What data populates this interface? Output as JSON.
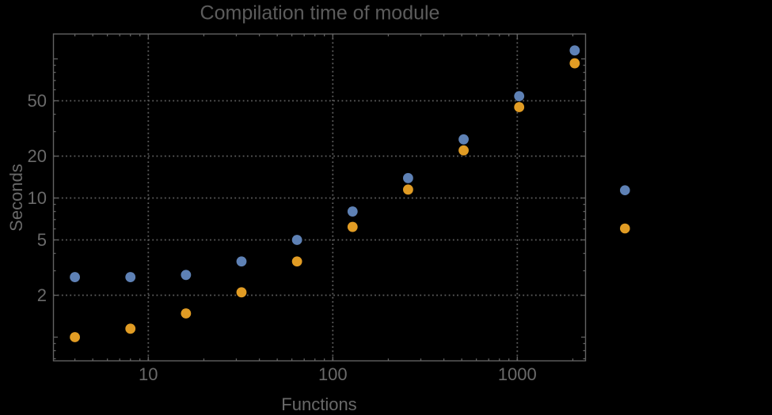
{
  "window": {
    "background": "#000000"
  },
  "chart_data": {
    "type": "scatter",
    "title": "Compilation time of module",
    "xlabel": "Functions",
    "ylabel": "Seconds",
    "x_scale": "log",
    "y_scale": "log",
    "x": [
      4,
      8,
      16,
      32,
      64,
      128,
      256,
      512,
      1024,
      2048
    ],
    "series": [
      {
        "name": "blue-series",
        "color": "#5e81b5",
        "values": [
          2.7,
          2.7,
          2.8,
          3.5,
          5.0,
          8.0,
          13.9,
          26.4,
          54,
          115
        ]
      },
      {
        "name": "orange-series",
        "color": "#e19c24",
        "values": [
          1.0,
          1.15,
          1.48,
          2.1,
          3.5,
          6.2,
          11.5,
          22,
          45,
          93
        ]
      }
    ],
    "xlim": [
      3.05,
      2340
    ],
    "ylim": [
      0.67,
      152
    ],
    "x_ticks_labeled": [
      10,
      100,
      1000
    ],
    "y_ticks_labeled": [
      2,
      5,
      10,
      20,
      50
    ],
    "x_gridlines": [
      10,
      100,
      1000
    ],
    "y_gridlines": [
      2,
      5,
      10,
      20,
      50
    ],
    "grid_style": "dotted",
    "legend": {
      "position": "right-center",
      "labels_visible": false,
      "markers": [
        {
          "series": "blue-series",
          "color": "#5e81b5"
        },
        {
          "series": "orange-series",
          "color": "#e19c24"
        }
      ]
    },
    "colors": {
      "background": "#000000",
      "frame": "#616161",
      "grid": "#5e5e5e",
      "title": "#5c5c5c",
      "axis_labels": "#696969",
      "tick_labels": "#6a6a6a"
    }
  }
}
